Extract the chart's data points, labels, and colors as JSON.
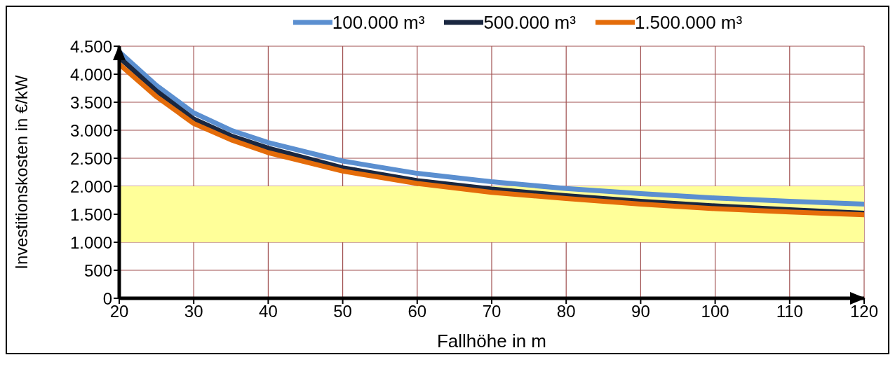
{
  "chart_data": {
    "type": "line",
    "xlabel": "Fallhöhe in m",
    "ylabel": "Investitionskosten in €/kW",
    "x": [
      20,
      25,
      30,
      35,
      40,
      50,
      60,
      70,
      80,
      90,
      100,
      110,
      120
    ],
    "series": [
      {
        "name": "100.000 m³",
        "color": "#5b8fd0",
        "values": [
          4400,
          3800,
          3310,
          3000,
          2780,
          2450,
          2230,
          2080,
          1960,
          1870,
          1790,
          1730,
          1680
        ]
      },
      {
        "name": "500.000 m³",
        "color": "#1a2740",
        "values": [
          4300,
          3700,
          3200,
          2900,
          2680,
          2330,
          2100,
          1950,
          1830,
          1730,
          1650,
          1580,
          1520
        ]
      },
      {
        "name": "1.500.000 m³",
        "color": "#e46c0a",
        "values": [
          4180,
          3600,
          3120,
          2830,
          2600,
          2270,
          2050,
          1890,
          1780,
          1680,
          1600,
          1540,
          1490
        ]
      }
    ],
    "xlim": [
      20,
      120
    ],
    "xticks": [
      20,
      30,
      40,
      50,
      60,
      70,
      80,
      90,
      100,
      110,
      120
    ],
    "ylim": [
      0,
      4500
    ],
    "yticks": [
      0,
      500,
      {
        "value": 1000,
        "label": "1.000"
      },
      {
        "value": 1500,
        "label": "1.500"
      },
      {
        "value": 2000,
        "label": "2.000"
      },
      {
        "value": 2500,
        "label": "2.500"
      },
      {
        "value": 3000,
        "label": "3.000"
      },
      {
        "value": 3500,
        "label": "3.500"
      },
      {
        "value": 4000,
        "label": "4.000"
      },
      {
        "value": 4500,
        "label": "4.500"
      }
    ],
    "bands": [
      {
        "axis": "y",
        "from": 1000,
        "to": 2000,
        "color": "#ffff99"
      }
    ],
    "grid": true,
    "legend": "top",
    "marker": "none",
    "line_style": "solid"
  }
}
